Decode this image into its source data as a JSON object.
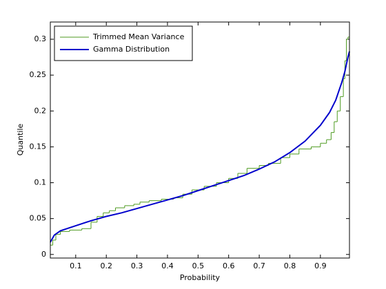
{
  "chart_data": {
    "type": "line",
    "xlabel": "Probability",
    "ylabel": "Quantile",
    "xlim": [
      0.017,
      0.995
    ],
    "ylim": [
      -0.005,
      0.324
    ],
    "xticks": [
      0.1,
      0.2,
      0.3,
      0.4,
      0.5,
      0.6,
      0.7,
      0.8,
      0.9
    ],
    "yticks": [
      0,
      0.05,
      0.1,
      0.15,
      0.2,
      0.25,
      0.3
    ],
    "legend": "northwest",
    "series": [
      {
        "name": "Trimmed Mean Variance",
        "color": "#4d9a1f",
        "step": true,
        "x": [
          0.017,
          0.025,
          0.035,
          0.05,
          0.08,
          0.12,
          0.15,
          0.17,
          0.19,
          0.21,
          0.23,
          0.26,
          0.29,
          0.31,
          0.34,
          0.38,
          0.42,
          0.45,
          0.48,
          0.52,
          0.56,
          0.6,
          0.63,
          0.66,
          0.7,
          0.73,
          0.77,
          0.8,
          0.83,
          0.87,
          0.9,
          0.92,
          0.935,
          0.945,
          0.955,
          0.965,
          0.975,
          0.98,
          0.985,
          0.99
        ],
        "values": [
          0.013,
          0.02,
          0.028,
          0.032,
          0.034,
          0.036,
          0.045,
          0.053,
          0.058,
          0.061,
          0.065,
          0.068,
          0.07,
          0.073,
          0.075,
          0.077,
          0.079,
          0.084,
          0.09,
          0.095,
          0.1,
          0.106,
          0.113,
          0.12,
          0.124,
          0.127,
          0.135,
          0.14,
          0.147,
          0.15,
          0.155,
          0.16,
          0.17,
          0.185,
          0.2,
          0.22,
          0.245,
          0.27,
          0.3,
          0.303
        ]
      },
      {
        "name": "Gamma Distribution",
        "color": "#0000cc",
        "step": false,
        "x": [
          0.017,
          0.03,
          0.05,
          0.1,
          0.15,
          0.2,
          0.25,
          0.3,
          0.35,
          0.4,
          0.45,
          0.5,
          0.55,
          0.6,
          0.65,
          0.7,
          0.75,
          0.8,
          0.85,
          0.9,
          0.93,
          0.95,
          0.97,
          0.98,
          0.99,
          0.995
        ],
        "values": [
          0.017,
          0.027,
          0.033,
          0.04,
          0.047,
          0.053,
          0.058,
          0.064,
          0.07,
          0.076,
          0.082,
          0.089,
          0.096,
          0.103,
          0.11,
          0.119,
          0.129,
          0.142,
          0.158,
          0.18,
          0.198,
          0.215,
          0.24,
          0.255,
          0.275,
          0.283
        ]
      }
    ]
  }
}
